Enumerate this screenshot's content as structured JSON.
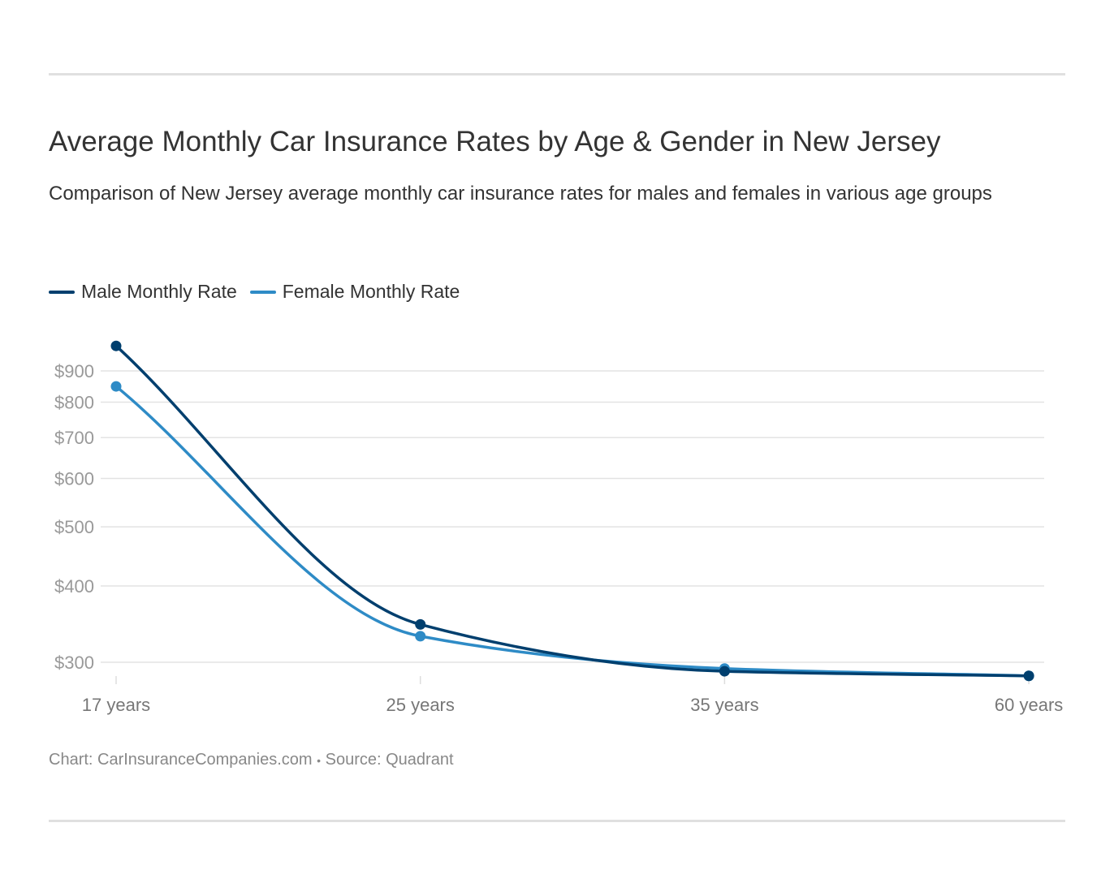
{
  "chart_data": {
    "type": "line",
    "title": "Average Monthly Car Insurance Rates by Age & Gender in New Jersey",
    "subtitle": "Comparison of New Jersey average monthly car insurance rates for males and females in various age groups",
    "categories": [
      "17 years",
      "25 years",
      "35 years",
      "60 years"
    ],
    "y_scale": "log",
    "yticks": [
      300,
      400,
      500,
      600,
      700,
      800,
      900
    ],
    "ytick_labels": [
      "$300",
      "$400",
      "$500",
      "$600",
      "$700",
      "$800",
      "$900"
    ],
    "grid": true,
    "legend_placement": "top-left",
    "series": [
      {
        "name": "Male Monthly Rate",
        "color": "#003f6e",
        "values": [
          989,
          346,
          290,
          285
        ]
      },
      {
        "name": "Female Monthly Rate",
        "color": "#2e8bc6",
        "values": [
          849,
          331,
          293,
          285
        ]
      }
    ]
  },
  "credit": {
    "chart": "Chart: CarInsuranceCompanies.com",
    "sep": "•",
    "source": "Source: Quadrant"
  }
}
